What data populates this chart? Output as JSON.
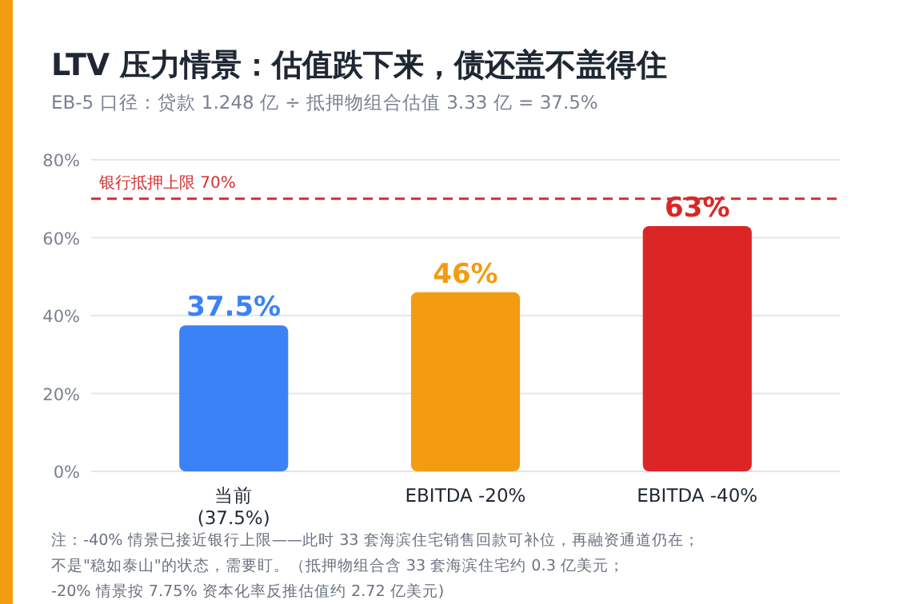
{
  "chart_data": {
    "type": "bar",
    "title": "LTV 压力情景：估值跌下来，债还盖不盖得住",
    "subtitle": "EB-5 口径：贷款 1.248 亿 ÷ 抵押物组合估值 3.33 亿 = 37.5%",
    "categories": [
      "当前\n(37.5%)",
      "EBITDA -20%",
      "EBITDA -40%"
    ],
    "values": [
      37.5,
      46,
      63
    ],
    "colors": [
      "#3b82f6",
      "#f39c12",
      "#dc2626"
    ],
    "value_labels": [
      "37.5%",
      "46%",
      "63%"
    ],
    "ylim": [
      0,
      80
    ],
    "yticks": [
      {
        "value": 0,
        "label": "0%"
      },
      {
        "value": 20,
        "label": "20%"
      },
      {
        "value": 40,
        "label": "40%"
      },
      {
        "value": 60,
        "label": "60%"
      },
      {
        "value": 80,
        "label": "80%"
      }
    ],
    "grid": "y",
    "ref_lines": [
      {
        "axis": "y",
        "value": 70,
        "label": "银行抵押上限 70%",
        "color": "#d32f2f",
        "line_style": "dashed"
      }
    ],
    "annotations": [
      "注：-40% 情景已接近银行上限——此时 33 套海滨住宅销售回款可补位，再融资通道仍在；",
      "不是\"稳如泰山\"的状态，需要盯。（抵押物组合含 33 套海滨住宅约 0.3 亿美元；",
      "-20% 情景按 7.75% 资本化率反推估值约 2.72 亿美元)"
    ]
  }
}
